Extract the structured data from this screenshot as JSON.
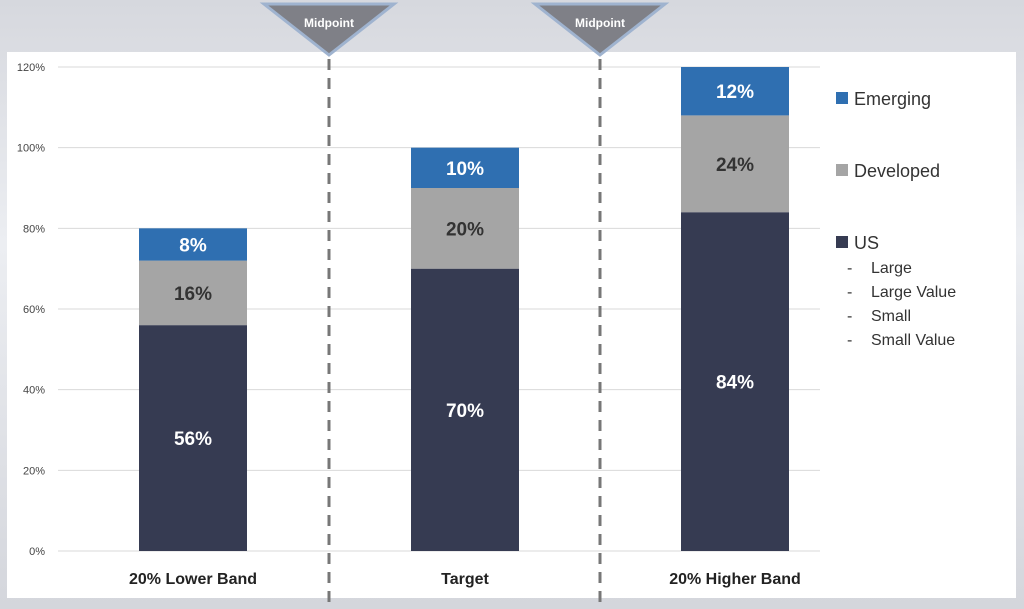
{
  "chart_data": {
    "type": "bar",
    "stacked": true,
    "categories": [
      "20% Lower Band",
      "Target",
      "20% Higher Band"
    ],
    "series": [
      {
        "name": "US",
        "values": [
          56,
          70,
          84
        ],
        "labels": [
          "56%",
          "70%",
          "84%"
        ],
        "color": "#363b52",
        "label_color": "#ffffff"
      },
      {
        "name": "Developed",
        "values": [
          16,
          20,
          24
        ],
        "labels": [
          "16%",
          "20%",
          "24%"
        ],
        "color": "#a5a5a5",
        "label_color": "#333333"
      },
      {
        "name": "Emerging",
        "values": [
          8,
          10,
          12
        ],
        "labels": [
          "8%",
          "10%",
          "12%"
        ],
        "color": "#2f6fb1",
        "label_color": "#ffffff"
      }
    ],
    "ylim": [
      0,
      120
    ],
    "yticks": [
      0,
      20,
      40,
      60,
      80,
      100,
      120
    ],
    "ytick_labels": [
      "0%",
      "20%",
      "40%",
      "60%",
      "80%",
      "100%",
      "120%"
    ],
    "grid": true,
    "legend_position": "right",
    "legend_order": [
      "Emerging",
      "Developed",
      "US"
    ],
    "us_subitems": [
      "Large",
      "Large Value",
      "Small",
      "Small Value"
    ],
    "sub_bullet": "-",
    "annotations": [
      {
        "text": "Midpoint"
      },
      {
        "text": "Midpoint"
      }
    ]
  }
}
